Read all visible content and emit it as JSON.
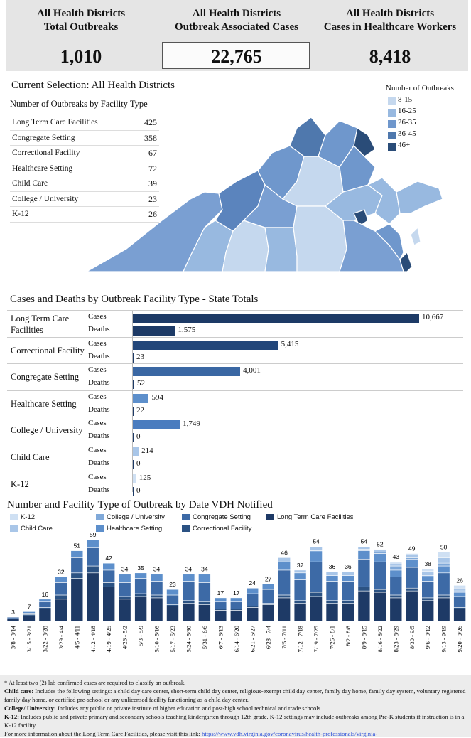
{
  "kpis": {
    "total_outbreaks": {
      "label_line1": "All Health Districts",
      "label_line2": "Total Outbreaks",
      "value": "1,010"
    },
    "associated_cases": {
      "label_line1": "All Health Districts",
      "label_line2": "Outbreak Associated Cases",
      "value": "22,765"
    },
    "healthcare_workers": {
      "label_line1": "All Health Districts",
      "label_line2": "Cases in Healthcare Workers",
      "value": "8,418"
    }
  },
  "selection": {
    "title": "Current Selection: All Health Districts",
    "table_title": "Number of Outbreaks by Facility Type",
    "rows": [
      {
        "name": "Long Term Care Facilities",
        "value": "425"
      },
      {
        "name": "Congregate Setting",
        "value": "358"
      },
      {
        "name": "Correctional Facility",
        "value": "67"
      },
      {
        "name": "Healthcare Setting",
        "value": "72"
      },
      {
        "name": "Child Care",
        "value": "39"
      },
      {
        "name": "College / University",
        "value": "23"
      },
      {
        "name": "K-12",
        "value": "26"
      }
    ]
  },
  "map_legend": {
    "title": "Number of Outbreaks",
    "items": [
      {
        "label": "8-15",
        "color": "#c5d8ee"
      },
      {
        "label": "16-25",
        "color": "#98b9e0"
      },
      {
        "label": "26-35",
        "color": "#6f97cc"
      },
      {
        "label": "36-45",
        "color": "#4f78ad"
      },
      {
        "label": "46+",
        "color": "#2a4c78"
      }
    ]
  },
  "cases_deaths": {
    "title": "Cases and Deaths by Outbreak Facility Type - State Totals",
    "cases_label": "Cases",
    "deaths_label": "Deaths",
    "max": 10667,
    "groups": [
      {
        "facility_line1": "Long Term Care",
        "facility_line2": "Facilities",
        "cases": 10667,
        "deaths": 1575,
        "cases_text": "10,667",
        "deaths_text": "1,575",
        "color": "#1d3a66"
      },
      {
        "facility_line1": "Correctional Facility",
        "facility_line2": "",
        "cases": 5415,
        "deaths": 23,
        "cases_text": "5,415",
        "deaths_text": "23",
        "color": "#22467a"
      },
      {
        "facility_line1": "Congregate Setting",
        "facility_line2": "",
        "cases": 4001,
        "deaths": 52,
        "cases_text": "4,001",
        "deaths_text": "52",
        "color": "#3a67a3"
      },
      {
        "facility_line1": "Healthcare Setting",
        "facility_line2": "",
        "cases": 594,
        "deaths": 22,
        "cases_text": "594",
        "deaths_text": "22",
        "color": "#5d8fcb"
      },
      {
        "facility_line1": "College / University",
        "facility_line2": "",
        "cases": 1749,
        "deaths": 0,
        "cases_text": "1,749",
        "deaths_text": "0",
        "color": "#4a7cbf"
      },
      {
        "facility_line1": "Child Care",
        "facility_line2": "",
        "cases": 214,
        "deaths": 0,
        "cases_text": "214",
        "deaths_text": "0",
        "color": "#a9c6e8"
      },
      {
        "facility_line1": "K-12",
        "facility_line2": "",
        "cases": 125,
        "deaths": 0,
        "cases_text": "125",
        "deaths_text": "0",
        "color": "#cfe0f3"
      }
    ]
  },
  "chart_data": {
    "type": "bar",
    "title": "Number and Facility Type of Outbreak by Date VDH Notified",
    "stacked": true,
    "categories": [
      "3/8 - 3/14",
      "3/15 - 3/21",
      "3/22 - 3/28",
      "3/29 - 4/4",
      "4/5 - 4/11",
      "4/12 - 4/18",
      "4/19 - 4/25",
      "4/26 - 5/2",
      "5/3 - 5/9",
      "5/10 - 5/16",
      "5/17 - 5/23",
      "5/24 - 5/30",
      "5/31 - 6/6",
      "6/7 - 6/13",
      "6/14 - 6/20",
      "6/21 - 6/27",
      "6/28 - 7/4",
      "7/5 - 7/11",
      "7/12 - 7/18",
      "7/19 - 7/25",
      "7/26 - 8/1",
      "8/2 - 8/8",
      "8/9 - 8/15",
      "8/16 - 8/22",
      "8/23 - 8/29",
      "8/30 - 9/5",
      "9/6 - 9/12",
      "9/13 - 9/19",
      "9/20 - 9/26"
    ],
    "totals": [
      3,
      7,
      16,
      32,
      51,
      59,
      42,
      34,
      35,
      34,
      23,
      34,
      34,
      17,
      17,
      24,
      27,
      46,
      37,
      54,
      36,
      36,
      54,
      52,
      43,
      49,
      38,
      50,
      26
    ],
    "series": [
      {
        "name": "Long Term Care Facilities",
        "color": "#1e3a66",
        "values": [
          2,
          4,
          9,
          16,
          31,
          35,
          25,
          16,
          18,
          17,
          11,
          13,
          12,
          8,
          8,
          10,
          12,
          17,
          13,
          18,
          13,
          13,
          22,
          21,
          17,
          22,
          15,
          17,
          9
        ]
      },
      {
        "name": "Correctional Facility",
        "color": "#2b5283",
        "values": [
          0,
          1,
          1,
          3,
          4,
          5,
          3,
          2,
          2,
          2,
          1,
          2,
          2,
          1,
          1,
          1,
          1,
          2,
          2,
          3,
          2,
          2,
          3,
          2,
          2,
          2,
          2,
          2,
          1
        ]
      },
      {
        "name": "Congregate Setting",
        "color": "#3d6aa6",
        "values": [
          1,
          1,
          4,
          9,
          11,
          13,
          9,
          10,
          11,
          10,
          7,
          14,
          14,
          5,
          5,
          9,
          10,
          18,
          15,
          22,
          14,
          14,
          20,
          20,
          13,
          15,
          12,
          16,
          8
        ]
      },
      {
        "name": "Healthcare Setting",
        "color": "#5d8fcb",
        "values": [
          0,
          1,
          2,
          4,
          5,
          6,
          5,
          6,
          4,
          5,
          4,
          5,
          6,
          3,
          3,
          4,
          4,
          6,
          5,
          7,
          4,
          4,
          6,
          6,
          5,
          6,
          3,
          5,
          3
        ]
      },
      {
        "name": "College / University",
        "color": "#80a9d9",
        "values": [
          0,
          0,
          0,
          0,
          0,
          0,
          0,
          0,
          0,
          0,
          0,
          0,
          0,
          0,
          0,
          0,
          0,
          0,
          0,
          1,
          0,
          0,
          1,
          1,
          3,
          1,
          1,
          2,
          1
        ]
      },
      {
        "name": "Child Care",
        "color": "#a9c6e8",
        "values": [
          0,
          0,
          0,
          0,
          0,
          0,
          0,
          0,
          0,
          0,
          0,
          0,
          0,
          0,
          0,
          0,
          0,
          3,
          2,
          3,
          3,
          3,
          2,
          2,
          2,
          2,
          3,
          4,
          2
        ]
      },
      {
        "name": "K-12",
        "color": "#cfe0f3",
        "values": [
          0,
          0,
          0,
          0,
          0,
          0,
          0,
          0,
          0,
          0,
          0,
          0,
          0,
          0,
          0,
          0,
          0,
          0,
          0,
          0,
          0,
          0,
          0,
          0,
          1,
          1,
          2,
          4,
          2
        ]
      }
    ],
    "legend": [
      {
        "label": "K-12",
        "color": "#cfe0f3"
      },
      {
        "label": "College / University",
        "color": "#80a9d9"
      },
      {
        "label": "Congregate Setting",
        "color": "#3d6aa6"
      },
      {
        "label": "Long Term Care Facilities",
        "color": "#1e3a66"
      },
      {
        "label": "Child Care",
        "color": "#a9c6e8"
      },
      {
        "label": "Healthcare Setting",
        "color": "#5d8fcb"
      },
      {
        "label": "Correctional Facility",
        "color": "#2b5283"
      }
    ]
  },
  "footnote": {
    "line1": "* At least two (2) lab confirmed cases are required to classify an outbreak.",
    "child_care_label": "Child care:",
    "child_care_text": " Includes the following settings: a child day care center, short-term child day center, religious-exempt child day center, family day home, family day system, voluntary registered family day home, or certified pre-school or any unlicensed facility functioning as a child day center.",
    "college_label": "College/ University:",
    "college_text": " Includes any public or private institute of higher education and post-high school technical and trade schools.",
    "k12_label": "K-12:",
    "k12_text": " Includes public and private primary and secondary schools teaching kindergarten through 12th grade. K-12 settings may include outbreaks among Pre-K students if instruction is in a K-12 facility.",
    "more_info": "For more information about the Long Term Care Facilities, please visit this link: ",
    "link_text": "https://www.vdh.virginia.gov/coronavirus/health-professionals/virginia-"
  }
}
